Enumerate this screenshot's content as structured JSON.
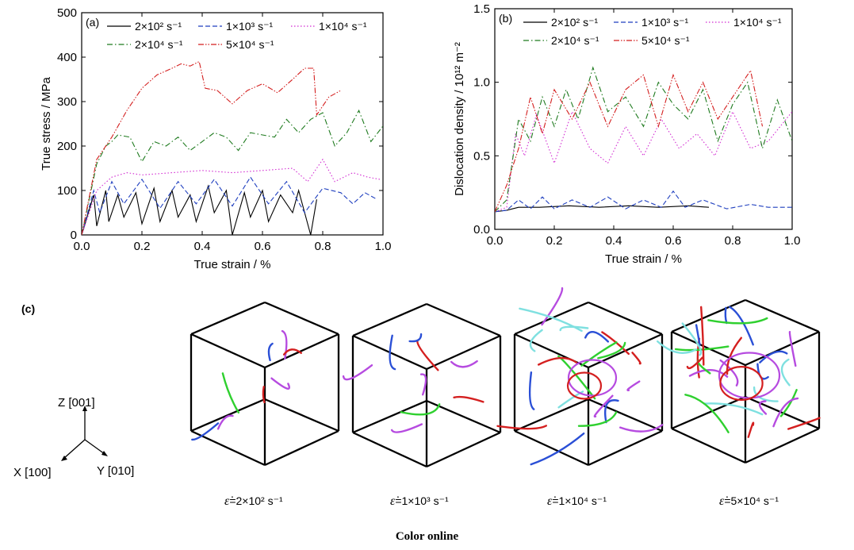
{
  "chart_data": [
    {
      "panel": "(a)",
      "type": "line",
      "xlabel": "True strain / %",
      "ylabel": "True stress / MPa",
      "xlim": [
        0.0,
        1.0
      ],
      "ylim": [
        0,
        500
      ],
      "xticks": [
        "0.0",
        "0.2",
        "0.4",
        "0.6",
        "0.8",
        "1.0"
      ],
      "yticks": [
        "0",
        "100",
        "200",
        "300",
        "400",
        "500"
      ],
      "legend_placement": "top",
      "series": [
        {
          "name": "2×10² s⁻¹",
          "color": "#000000",
          "dash": "solid",
          "x": [
            0,
            0.04,
            0.05,
            0.08,
            0.09,
            0.12,
            0.14,
            0.18,
            0.2,
            0.24,
            0.26,
            0.3,
            0.32,
            0.36,
            0.38,
            0.42,
            0.44,
            0.48,
            0.5,
            0.54,
            0.56,
            0.6,
            0.62,
            0.66,
            0.7,
            0.72,
            0.76,
            0.78
          ],
          "y": [
            0,
            90,
            20,
            100,
            30,
            90,
            40,
            95,
            25,
            105,
            30,
            100,
            40,
            90,
            30,
            110,
            50,
            100,
            0,
            95,
            40,
            100,
            30,
            90,
            50,
            100,
            0,
            80
          ]
        },
        {
          "name": "1×10³ s⁻¹",
          "color": "#1f3fbf",
          "dash": "dashed",
          "x": [
            0,
            0.04,
            0.06,
            0.1,
            0.14,
            0.2,
            0.26,
            0.32,
            0.38,
            0.44,
            0.5,
            0.56,
            0.62,
            0.68,
            0.74,
            0.8,
            0.86,
            0.9,
            0.94,
            0.98
          ],
          "y": [
            0,
            100,
            50,
            120,
            70,
            125,
            60,
            120,
            70,
            125,
            65,
            130,
            70,
            120,
            50,
            105,
            95,
            70,
            95,
            80
          ]
        },
        {
          "name": "1×10⁴ s⁻¹",
          "color": "#d22bd2",
          "dash": "dotted",
          "x": [
            0,
            0.05,
            0.1,
            0.15,
            0.2,
            0.3,
            0.4,
            0.5,
            0.6,
            0.7,
            0.75,
            0.8,
            0.84,
            0.9,
            0.95,
            0.99
          ],
          "y": [
            0,
            100,
            130,
            140,
            135,
            140,
            145,
            140,
            145,
            150,
            120,
            170,
            120,
            140,
            130,
            125
          ]
        },
        {
          "name": "2×10⁴ s⁻¹",
          "color": "#1e7a1e",
          "dash": "dashdot",
          "x": [
            0,
            0.05,
            0.08,
            0.1,
            0.12,
            0.16,
            0.2,
            0.24,
            0.28,
            0.32,
            0.36,
            0.4,
            0.44,
            0.48,
            0.52,
            0.56,
            0.6,
            0.64,
            0.68,
            0.72,
            0.76,
            0.8,
            0.84,
            0.88,
            0.92,
            0.96,
            1.0
          ],
          "y": [
            0,
            160,
            200,
            210,
            225,
            220,
            165,
            210,
            200,
            220,
            190,
            210,
            230,
            220,
            190,
            230,
            225,
            220,
            260,
            230,
            260,
            275,
            200,
            230,
            280,
            210,
            245
          ]
        },
        {
          "name": "5×10⁴ s⁻¹",
          "color": "#d41f1f",
          "dash": "dashdotdot",
          "x": [
            0,
            0.05,
            0.1,
            0.15,
            0.2,
            0.25,
            0.3,
            0.33,
            0.36,
            0.39,
            0.41,
            0.45,
            0.5,
            0.55,
            0.6,
            0.65,
            0.7,
            0.74,
            0.77,
            0.78,
            0.82,
            0.86
          ],
          "y": [
            0,
            170,
            220,
            280,
            330,
            360,
            375,
            385,
            380,
            390,
            330,
            325,
            295,
            325,
            340,
            320,
            350,
            375,
            375,
            270,
            310,
            325
          ]
        }
      ]
    },
    {
      "panel": "(b)",
      "type": "line",
      "xlabel": "True strain / %",
      "ylabel": "Dislocation density / 10¹² m⁻²",
      "xlim": [
        0.0,
        1.0
      ],
      "ylim": [
        0.0,
        1.5
      ],
      "xticks": [
        "0.0",
        "0.2",
        "0.4",
        "0.6",
        "0.8",
        "1.0"
      ],
      "yticks": [
        "0.0",
        "0.5",
        "1.0",
        "1.5"
      ],
      "legend_placement": "top",
      "series": [
        {
          "name": "2×10² s⁻¹",
          "color": "#000000",
          "dash": "solid",
          "x": [
            0,
            0.04,
            0.08,
            0.15,
            0.25,
            0.35,
            0.45,
            0.55,
            0.65,
            0.72
          ],
          "y": [
            0.12,
            0.13,
            0.15,
            0.15,
            0.16,
            0.15,
            0.16,
            0.15,
            0.16,
            0.15
          ]
        },
        {
          "name": "1×10³ s⁻¹",
          "color": "#1f3fbf",
          "dash": "dashed",
          "x": [
            0,
            0.04,
            0.08,
            0.12,
            0.16,
            0.2,
            0.26,
            0.32,
            0.38,
            0.44,
            0.5,
            0.56,
            0.6,
            0.64,
            0.7,
            0.78,
            0.86,
            0.92,
            1.0
          ],
          "y": [
            0.12,
            0.13,
            0.2,
            0.14,
            0.22,
            0.14,
            0.2,
            0.15,
            0.22,
            0.14,
            0.2,
            0.15,
            0.26,
            0.15,
            0.2,
            0.14,
            0.17,
            0.15,
            0.15
          ]
        },
        {
          "name": "1×10⁴ s⁻¹",
          "color": "#d22bd2",
          "dash": "dotted",
          "x": [
            0,
            0.04,
            0.07,
            0.1,
            0.14,
            0.2,
            0.26,
            0.32,
            0.38,
            0.44,
            0.5,
            0.56,
            0.62,
            0.68,
            0.74,
            0.8,
            0.86,
            0.92,
            1.0
          ],
          "y": [
            0.12,
            0.15,
            0.65,
            0.5,
            0.78,
            0.45,
            0.8,
            0.55,
            0.45,
            0.7,
            0.5,
            0.75,
            0.55,
            0.65,
            0.5,
            0.8,
            0.55,
            0.6,
            0.8
          ]
        },
        {
          "name": "2×10⁴ s⁻¹",
          "color": "#1e7a1e",
          "dash": "dashdot",
          "x": [
            0,
            0.04,
            0.08,
            0.12,
            0.16,
            0.2,
            0.24,
            0.28,
            0.33,
            0.38,
            0.44,
            0.5,
            0.55,
            0.6,
            0.65,
            0.7,
            0.75,
            0.8,
            0.85,
            0.9,
            0.95,
            1.0
          ],
          "y": [
            0.12,
            0.2,
            0.75,
            0.6,
            0.9,
            0.7,
            0.95,
            0.75,
            1.1,
            0.8,
            0.9,
            0.7,
            1.0,
            0.85,
            0.75,
            0.95,
            0.6,
            0.85,
            1.0,
            0.55,
            0.88,
            0.6
          ]
        },
        {
          "name": "5×10⁴ s⁻¹",
          "color": "#d41f1f",
          "dash": "dashdotdot",
          "x": [
            0,
            0.04,
            0.08,
            0.12,
            0.16,
            0.2,
            0.26,
            0.32,
            0.38,
            0.44,
            0.5,
            0.55,
            0.6,
            0.65,
            0.7,
            0.75,
            0.8,
            0.86,
            0.9
          ],
          "y": [
            0.12,
            0.3,
            0.55,
            0.9,
            0.65,
            0.95,
            0.75,
            1.0,
            0.7,
            0.95,
            1.05,
            0.7,
            1.05,
            0.8,
            1.0,
            0.75,
            0.9,
            1.08,
            0.7
          ]
        }
      ]
    }
  ],
  "legend": {
    "s1": "2×10² s⁻¹",
    "s2": "1×10³ s⁻¹",
    "s3": "1×10⁴ s⁻¹",
    "s4": "2×10⁴ s⁻¹",
    "s5": "5×10⁴ s⁻¹"
  },
  "panel_c": {
    "label": "(c)",
    "axes": {
      "z": "Z [001]",
      "x": "X [100]",
      "y": "Y [010]"
    },
    "captions": [
      {
        "symbol": "ε̇",
        "text": "=2×10² s⁻¹"
      },
      {
        "symbol": "ε̇",
        "text": "=1×10³ s⁻¹"
      },
      {
        "symbol": "ε̇",
        "text": "=1×10⁴ s⁻¹"
      },
      {
        "symbol": "ε̇",
        "text": "=5×10⁴ s⁻¹"
      }
    ],
    "dislocation_colors": [
      "#d41f1f",
      "#2a4fd6",
      "#b64be0",
      "#7fe0e0",
      "#2fd02f"
    ]
  },
  "footer": "Color online"
}
